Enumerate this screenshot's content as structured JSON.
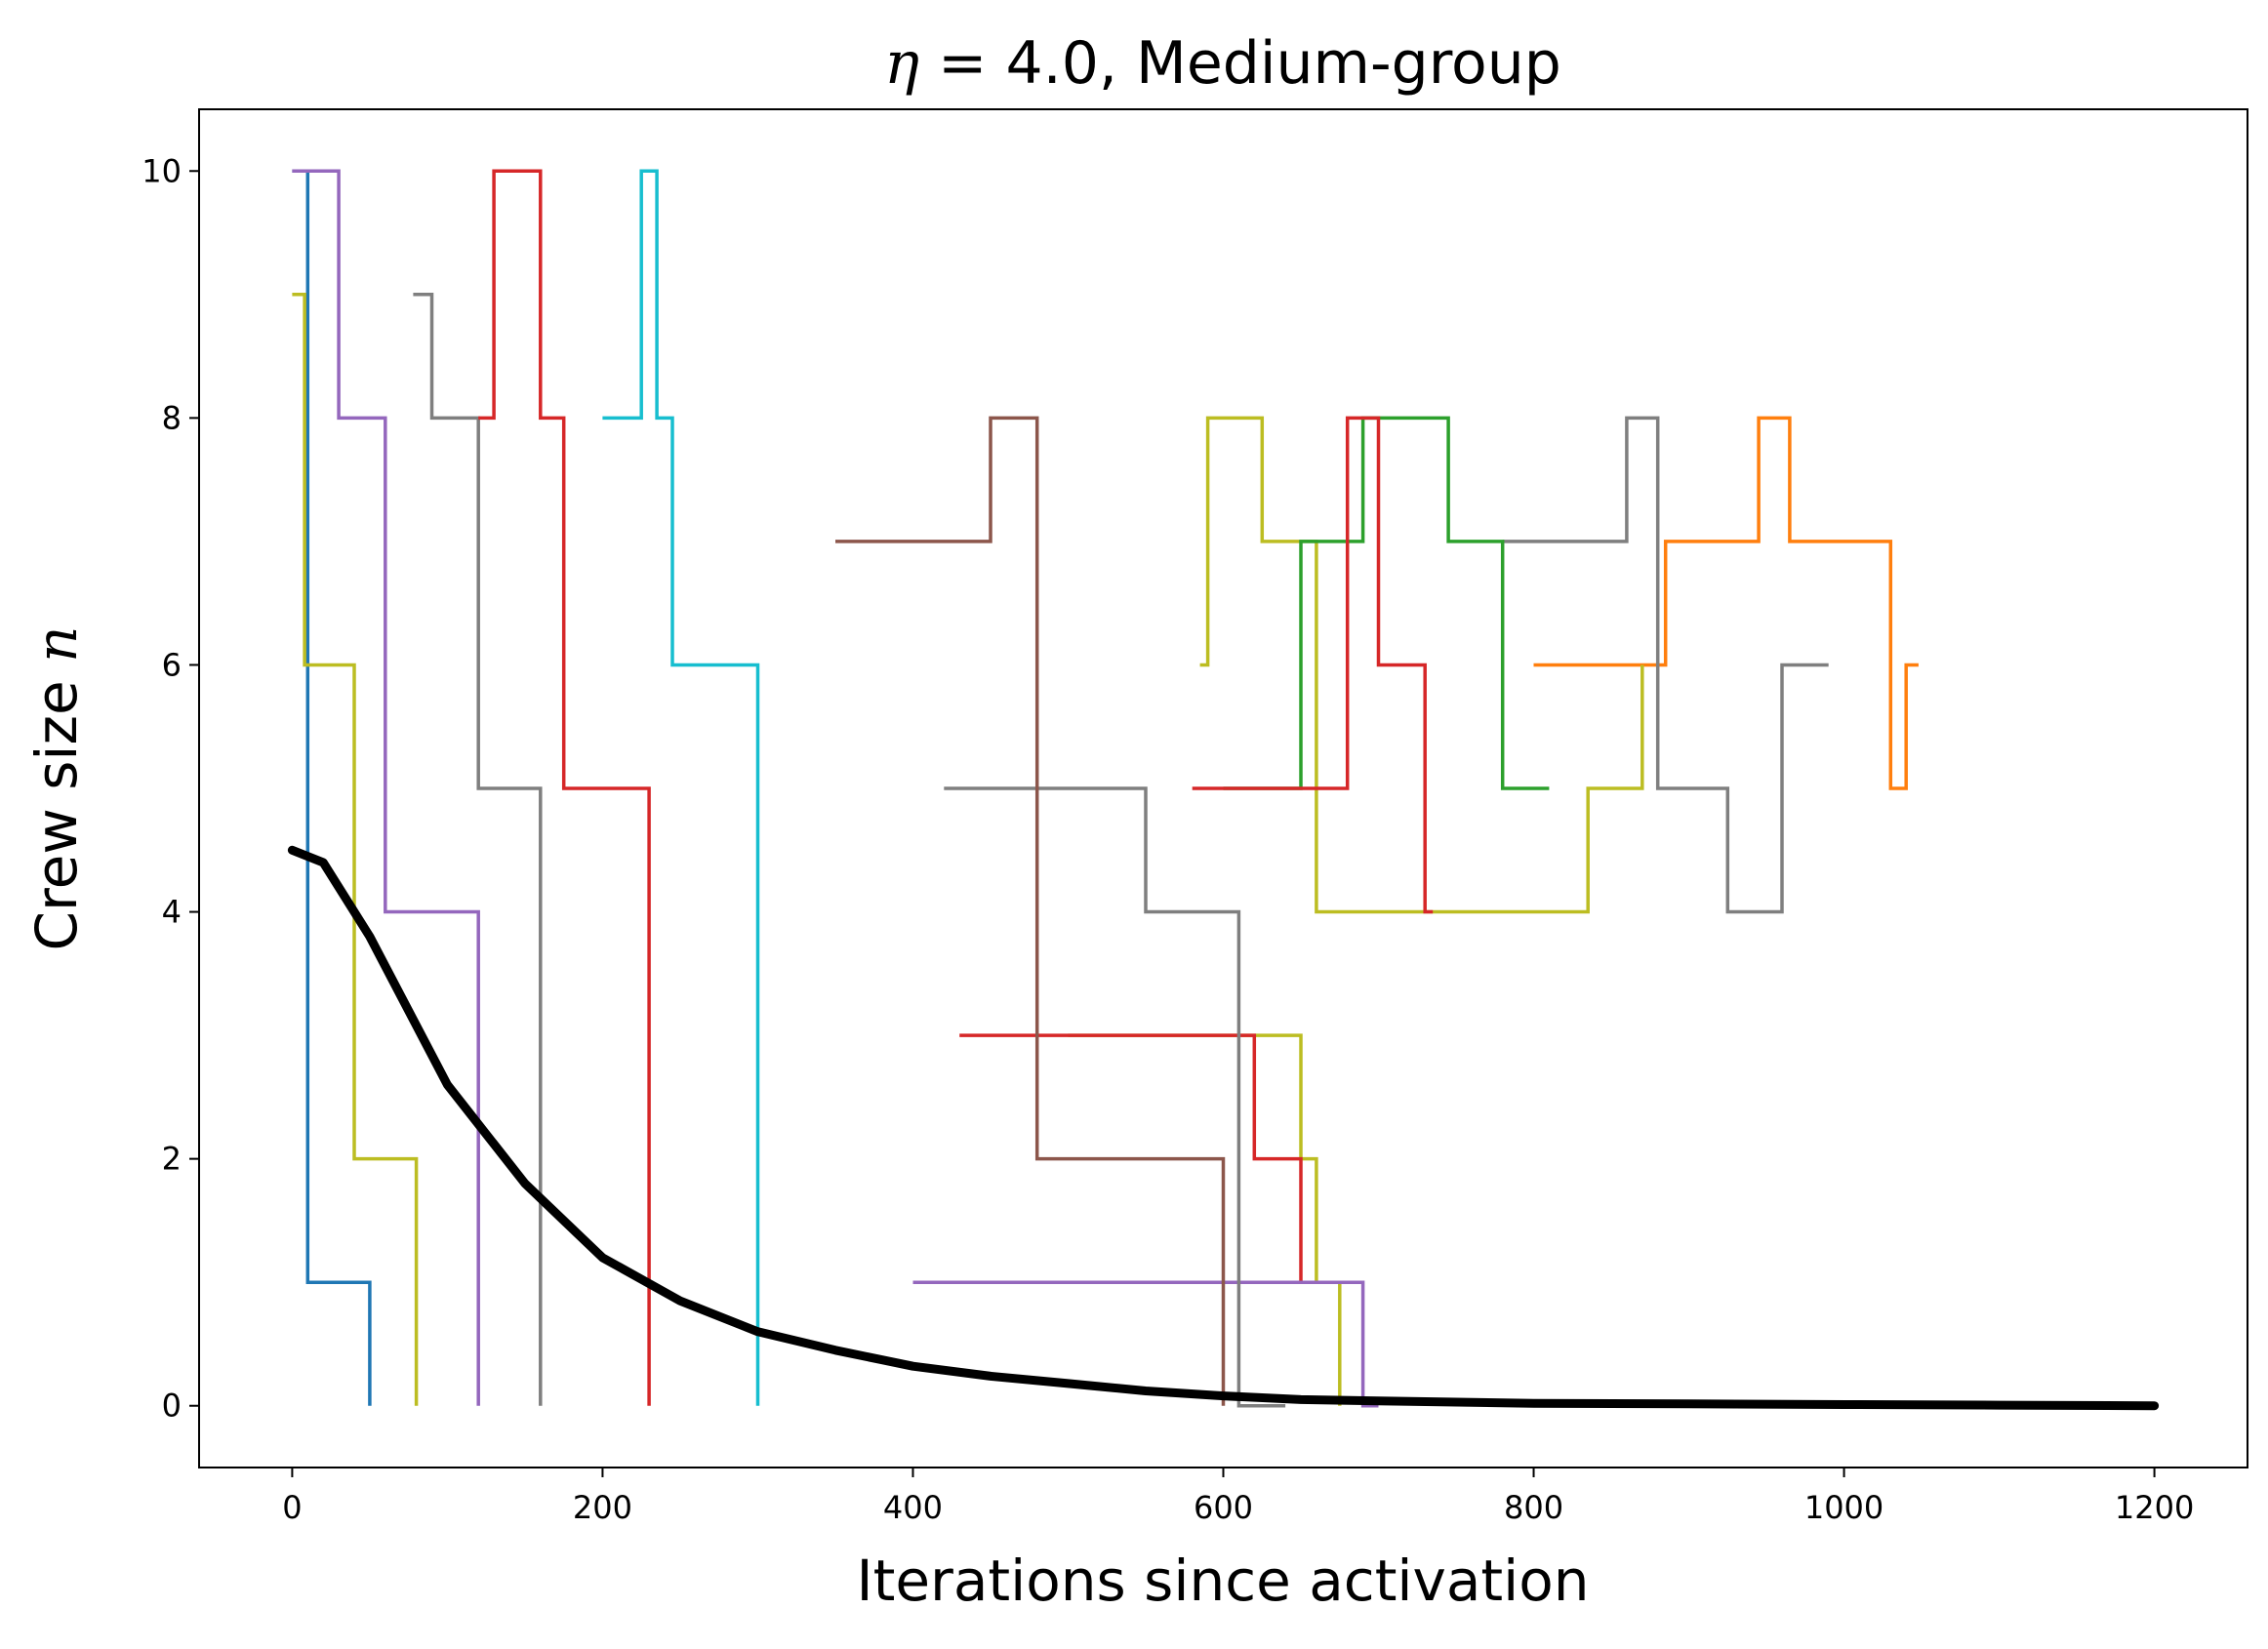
{
  "chart_data": {
    "type": "line",
    "title_prefix": "η",
    "title_eq": " = ",
    "title_rest": "4.0, Medium-group",
    "xlabel": "Iterations since activation",
    "ylabel_prefix": "Crew size ",
    "ylabel_var": "n",
    "xlim": [
      -60,
      1260
    ],
    "ylim": [
      -0.5,
      10.5
    ],
    "xticks": [
      0,
      200,
      400,
      600,
      800,
      1000,
      1200
    ],
    "yticks": [
      0,
      2,
      4,
      6,
      8,
      10
    ],
    "xtick_labels": [
      "0",
      "200",
      "400",
      "600",
      "800",
      "1000",
      "1200"
    ],
    "ytick_labels": [
      "0",
      "2",
      "4",
      "6",
      "8",
      "10"
    ],
    "grid": false,
    "legend": "none",
    "palette": [
      "#1f77b4",
      "#ff7f0e",
      "#2ca02c",
      "#d62728",
      "#9467bd",
      "#8c564b",
      "#e377c2",
      "#7f7f7f",
      "#bcbd22",
      "#17becf"
    ],
    "mean_color": "#000000",
    "series": [
      {
        "color": "#1f77b4",
        "x": [
          0,
          10,
          10,
          50
        ],
        "y": [
          10,
          10,
          1,
          0
        ]
      },
      {
        "color": "#9467bd",
        "x": [
          0,
          30,
          30,
          60,
          60,
          120
        ],
        "y": [
          10,
          10,
          8,
          8,
          4,
          0
        ]
      },
      {
        "color": "#bcbd22",
        "x": [
          0,
          8,
          8,
          40,
          40,
          80
        ],
        "y": [
          9,
          9,
          6,
          6,
          2,
          0
        ]
      },
      {
        "color": "#7f7f7f",
        "x": [
          78,
          90,
          90,
          120,
          120,
          160
        ],
        "y": [
          9,
          9,
          8,
          8,
          5,
          0
        ]
      },
      {
        "color": "#d62728",
        "x": [
          120,
          130,
          130,
          160,
          160,
          175,
          175,
          230
        ],
        "y": [
          8,
          8,
          10,
          10,
          8,
          8,
          5,
          0
        ]
      },
      {
        "color": "#17becf",
        "x": [
          200,
          225,
          225,
          235,
          235,
          245,
          245,
          300
        ],
        "y": [
          8,
          8,
          10,
          10,
          8,
          8,
          6,
          0
        ]
      },
      {
        "color": "#ff7f0e",
        "x": [
          800,
          885,
          885,
          945,
          945,
          965,
          965,
          1030,
          1030,
          1040,
          1040,
          1048
        ],
        "y": [
          6,
          6,
          7,
          7,
          8,
          8,
          7,
          7,
          5,
          5,
          6,
          6
        ]
      },
      {
        "color": "#7f7f7f",
        "x": [
          780,
          860,
          860,
          880,
          880,
          925,
          925,
          960,
          960,
          990
        ],
        "y": [
          7,
          7,
          8,
          8,
          5,
          5,
          4,
          4,
          6,
          6
        ]
      },
      {
        "color": "#bcbd22",
        "x": [
          585,
          590,
          590,
          625,
          625,
          660,
          660,
          805,
          805,
          835,
          835,
          870
        ],
        "y": [
          6,
          6,
          8,
          8,
          7,
          7,
          4,
          4,
          4,
          4,
          5,
          6
        ]
      },
      {
        "color": "#2ca02c",
        "x": [
          600,
          650,
          650,
          690,
          690,
          745,
          745,
          780,
          780,
          810
        ],
        "y": [
          5,
          5,
          7,
          7,
          8,
          8,
          7,
          7,
          5,
          5
        ]
      },
      {
        "color": "#d62728",
        "x": [
          580,
          680,
          680,
          700,
          700,
          730,
          730,
          735
        ],
        "y": [
          5,
          5,
          8,
          8,
          6,
          6,
          4,
          4
        ]
      },
      {
        "color": "#bcbd22",
        "x": [
          500,
          640,
          640,
          650,
          650,
          660,
          660,
          675
        ],
        "y": [
          3,
          3,
          3,
          3,
          2,
          2,
          1,
          0
        ]
      },
      {
        "color": "#d62728",
        "x": [
          430,
          620,
          620,
          650,
          650,
          690
        ],
        "y": [
          3,
          3,
          2,
          2,
          1,
          1
        ]
      },
      {
        "color": "#9467bd",
        "x": [
          400,
          600,
          600,
          690,
          690,
          700
        ],
        "y": [
          1,
          1,
          1,
          1,
          0,
          0
        ]
      },
      {
        "color": "#7f7f7f",
        "x": [
          420,
          550,
          550,
          610,
          610,
          640
        ],
        "y": [
          5,
          5,
          4,
          4,
          0,
          0
        ]
      },
      {
        "color": "#8c564b",
        "x": [
          350,
          450,
          450,
          480,
          480,
          600
        ],
        "y": [
          7,
          7,
          8,
          8,
          2,
          0
        ]
      }
    ],
    "mean_series": {
      "x": [
        0,
        20,
        50,
        100,
        150,
        200,
        250,
        300,
        350,
        400,
        450,
        500,
        550,
        600,
        650,
        700,
        800,
        900,
        1000,
        1100,
        1200
      ],
      "y": [
        4.5,
        4.4,
        3.8,
        2.6,
        1.8,
        1.2,
        0.85,
        0.6,
        0.45,
        0.32,
        0.24,
        0.18,
        0.12,
        0.08,
        0.05,
        0.04,
        0.02,
        0.015,
        0.01,
        0.005,
        0
      ]
    }
  }
}
